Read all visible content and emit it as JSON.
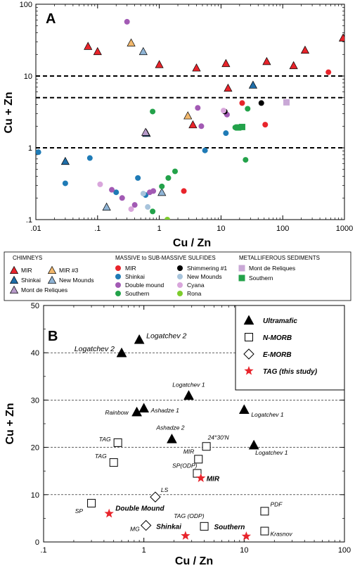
{
  "panel_a": {
    "letter": "A",
    "xlabel": "Cu / Zn",
    "ylabel": "Cu + Zn",
    "x_ticks": [
      ".01",
      ".1",
      "1",
      "10",
      "100",
      "1000"
    ],
    "y_ticks": [
      ".1",
      "1",
      "10",
      "100"
    ]
  },
  "legend_a": {
    "chimneys_head": "CHIMNEYS",
    "chimneys": [
      {
        "label": "MIR",
        "color": "#e8242b"
      },
      {
        "label": "Shinkai",
        "color": "#1f6ea8"
      },
      {
        "label": "Mont de Reliques",
        "color": "#b79ac9"
      },
      {
        "label": "MIR #3",
        "color": "#f2b86c"
      },
      {
        "label": "New Mounds",
        "color": "#8fb4d5"
      }
    ],
    "massive_head": "MASSIVE to SUB-MASSIVE SULFIDES",
    "massive": [
      {
        "label": "MIR",
        "color": "#e8242b"
      },
      {
        "label": "Shinkai",
        "color": "#1f7bb6"
      },
      {
        "label": "Double mound",
        "color": "#a25ab4"
      },
      {
        "label": "Southern",
        "color": "#23a24a"
      },
      {
        "label": "Shimmering #1",
        "color": "#000000"
      },
      {
        "label": "New Mounds",
        "color": "#a8c4dc"
      },
      {
        "label": "Cyana",
        "color": "#d9a6dc"
      },
      {
        "label": "Rona",
        "color": "#7dcc2d"
      }
    ],
    "metal_head": "METALLIFEROUS SEDIMENTS",
    "metal": [
      {
        "label": "Mont de Reliques",
        "color": "#c9a8d6"
      },
      {
        "label": "Southern",
        "color": "#23a24a"
      }
    ]
  },
  "panel_b": {
    "letter": "B",
    "xlabel": "Cu / Zn",
    "ylabel": "Cu + Zn",
    "x_ticks": [
      ".1",
      "1",
      "10",
      "100"
    ],
    "y_ticks": [
      "0",
      "10",
      "20",
      "30",
      "40",
      "50"
    ]
  },
  "legend_b": [
    {
      "label": "Ultramafic"
    },
    {
      "label": "N-MORB"
    },
    {
      "label": "E-MORB"
    },
    {
      "label": "TAG (this study)"
    }
  ],
  "chart_data": [
    {
      "type": "scatter",
      "title": "",
      "xlabel": "Cu / Zn",
      "ylabel": "Cu + Zn",
      "x_scale": "log",
      "y_scale": "log",
      "xlim": [
        0.01,
        1000
      ],
      "ylim": [
        0.1,
        100
      ],
      "reference_lines_y": [
        10,
        5,
        1
      ],
      "series": [
        {
          "name": "MIR",
          "group": "CHIMNEYS",
          "marker": "triangle",
          "color": "#e8242b",
          "points": [
            [
              0.07,
              26
            ],
            [
              0.1,
              22
            ],
            [
              1,
              14.5
            ],
            [
              4,
              13
            ],
            [
              12,
              15
            ],
            [
              13,
              6.8
            ],
            [
              3.5,
              2.1
            ],
            [
              55,
              16
            ],
            [
              150,
              14
            ],
            [
              230,
              23
            ],
            [
              950,
              34
            ]
          ]
        },
        {
          "name": "Shinkai",
          "group": "CHIMNEYS",
          "marker": "triangle",
          "color": "#1f6ea8",
          "points": [
            [
              0.03,
              0.65
            ],
            [
              0.62,
              1.6
            ],
            [
              33,
              7.5
            ]
          ]
        },
        {
          "name": "Mont de Reliques",
          "group": "CHIMNEYS",
          "marker": "triangle",
          "color": "#b79ac9",
          "points": [
            [
              0.6,
              1.65
            ]
          ]
        },
        {
          "name": "MIR #3",
          "group": "CHIMNEYS",
          "marker": "triangle",
          "color": "#f2b86c",
          "points": [
            [
              0.35,
              29
            ],
            [
              2.9,
              2.8
            ]
          ]
        },
        {
          "name": "New Mounds",
          "group": "CHIMNEYS",
          "marker": "triangle",
          "color": "#8fb4d5",
          "points": [
            [
              0.55,
              22
            ],
            [
              0.14,
              0.15
            ],
            [
              1.1,
              0.24
            ]
          ]
        },
        {
          "name": "MIR",
          "group": "MASSIVE to SUB-MASSIVE SULFIDES",
          "marker": "circle",
          "color": "#e8242b",
          "points": [
            [
              550,
              11.3
            ],
            [
              22,
              4.2
            ],
            [
              52,
              2.1
            ],
            [
              2.5,
              0.25
            ]
          ]
        },
        {
          "name": "Shinkai",
          "group": "MASSIVE to SUB-MASSIVE SULFIDES",
          "marker": "circle",
          "color": "#1f7bb6",
          "points": [
            [
              0.011,
              0.87
            ],
            [
              0.03,
              0.32
            ],
            [
              0.075,
              0.72
            ],
            [
              0.2,
              0.24
            ],
            [
              0.45,
              0.38
            ],
            [
              0.6,
              0.22
            ],
            [
              5.5,
              0.92
            ],
            [
              12,
              1.6
            ]
          ]
        },
        {
          "name": "Double mound",
          "group": "MASSIVE to SUB-MASSIVE SULFIDES",
          "marker": "circle",
          "color": "#a25ab4",
          "points": [
            [
              0.3,
              57
            ],
            [
              0.17,
              0.26
            ],
            [
              0.25,
              0.2
            ],
            [
              0.4,
              0.16
            ],
            [
              0.7,
              0.24
            ],
            [
              0.8,
              0.25
            ],
            [
              4.2,
              3.6
            ],
            [
              4.8,
              2.0
            ],
            [
              12.5,
              2.9
            ]
          ]
        },
        {
          "name": "Southern",
          "group": "MASSIVE to SUB-MASSIVE SULFIDES",
          "marker": "circle",
          "color": "#23a24a",
          "points": [
            [
              0.78,
              3.2
            ],
            [
              0.78,
              0.13
            ],
            [
              1.1,
              0.29
            ],
            [
              1.4,
              0.38
            ],
            [
              1.8,
              0.47
            ],
            [
              17,
              1.92
            ],
            [
              25,
              0.68
            ],
            [
              27,
              3.5
            ]
          ]
        },
        {
          "name": "Shimmering #1",
          "group": "MASSIVE to SUB-MASSIVE SULFIDES",
          "marker": "circle",
          "color": "#000000",
          "points": [
            [
              11.5,
              3.2
            ],
            [
              45,
              4.2
            ]
          ]
        },
        {
          "name": "New Mounds",
          "group": "MASSIVE to SUB-MASSIVE SULFIDES",
          "marker": "circle",
          "color": "#a8c4dc",
          "points": [
            [
              0.55,
              0.23
            ],
            [
              0.65,
              0.15
            ]
          ]
        },
        {
          "name": "Cyana",
          "group": "MASSIVE to SUB-MASSIVE SULFIDES",
          "marker": "circle",
          "color": "#d9a6dc",
          "points": [
            [
              0.11,
              0.31
            ],
            [
              0.35,
              0.14
            ],
            [
              11,
              3.3
            ]
          ]
        },
        {
          "name": "Rona",
          "group": "MASSIVE to SUB-MASSIVE SULFIDES",
          "marker": "circle",
          "color": "#7dcc2d",
          "points": [
            [
              1.35,
              0.1
            ]
          ]
        },
        {
          "name": "Mont de Reliques",
          "group": "METALLIFEROUS SEDIMENTS",
          "marker": "square",
          "color": "#c9a8d6",
          "points": [
            [
              115,
              4.3
            ]
          ]
        },
        {
          "name": "Southern",
          "group": "METALLIFEROUS SEDIMENTS",
          "marker": "square",
          "color": "#23a24a",
          "points": [
            [
              19,
              1.92
            ],
            [
              22,
              1.95
            ]
          ]
        }
      ]
    },
    {
      "type": "scatter",
      "title": "",
      "xlabel": "Cu / Zn",
      "ylabel": "Cu + Zn",
      "x_scale": "log",
      "y_scale": "linear",
      "xlim": [
        0.1,
        100
      ],
      "ylim": [
        0,
        50
      ],
      "grid_y": [
        10,
        20,
        30,
        40
      ],
      "legend_position": "top-right",
      "series": [
        {
          "name": "Ultramafic",
          "marker": "filled-triangle",
          "color": "#000000",
          "points": [
            {
              "x": 0.6,
              "y": 40,
              "label": "Logatchev 2"
            },
            {
              "x": 0.9,
              "y": 42.8,
              "label": "Logatchev 2"
            },
            {
              "x": 2.8,
              "y": 31,
              "label": "Logatchev 1"
            },
            {
              "x": 0.85,
              "y": 27.5,
              "label": "Rainbow"
            },
            {
              "x": 1.0,
              "y": 28.3,
              "label": "Ashadze 1"
            },
            {
              "x": 10,
              "y": 28,
              "label": "Logatchev 1"
            },
            {
              "x": 1.9,
              "y": 21.8,
              "label": "Ashadze 2"
            },
            {
              "x": 12.5,
              "y": 20.5,
              "label": "Logatchev 1"
            }
          ]
        },
        {
          "name": "N-MORB",
          "marker": "open-square",
          "color": "#000000",
          "points": [
            {
              "x": 0.55,
              "y": 21,
              "label": "TAG"
            },
            {
              "x": 0.5,
              "y": 16.8,
              "label": "TAG"
            },
            {
              "x": 3.5,
              "y": 17.5,
              "label": "MIR"
            },
            {
              "x": 4.2,
              "y": 20.2,
              "label": "24°30'N"
            },
            {
              "x": 3.4,
              "y": 14.5,
              "label": "SP(ODP)"
            },
            {
              "x": 0.3,
              "y": 8.2,
              "label": "SP"
            },
            {
              "x": 4,
              "y": 3.3,
              "label": "TAG (ODP)"
            },
            {
              "x": 16,
              "y": 6.5,
              "label": "PDF"
            },
            {
              "x": 16,
              "y": 2.3,
              "label": "Krasnov"
            }
          ]
        },
        {
          "name": "E-MORB",
          "marker": "open-diamond",
          "color": "#000000",
          "points": [
            {
              "x": 1.3,
              "y": 9.5,
              "label": "LS"
            },
            {
              "x": 1.05,
              "y": 3.5,
              "label": "MG"
            }
          ]
        },
        {
          "name": "TAG (this study)",
          "marker": "red-star",
          "color": "#e8242b",
          "points": [
            {
              "x": 3.7,
              "y": 13.5,
              "label": "MIR"
            },
            {
              "x": 0.45,
              "y": 6,
              "label": "Double Mound"
            },
            {
              "x": 2.6,
              "y": 1.3,
              "label": "Shinkai"
            },
            {
              "x": 10.5,
              "y": 1.2,
              "label": "Southern"
            }
          ]
        }
      ]
    }
  ]
}
